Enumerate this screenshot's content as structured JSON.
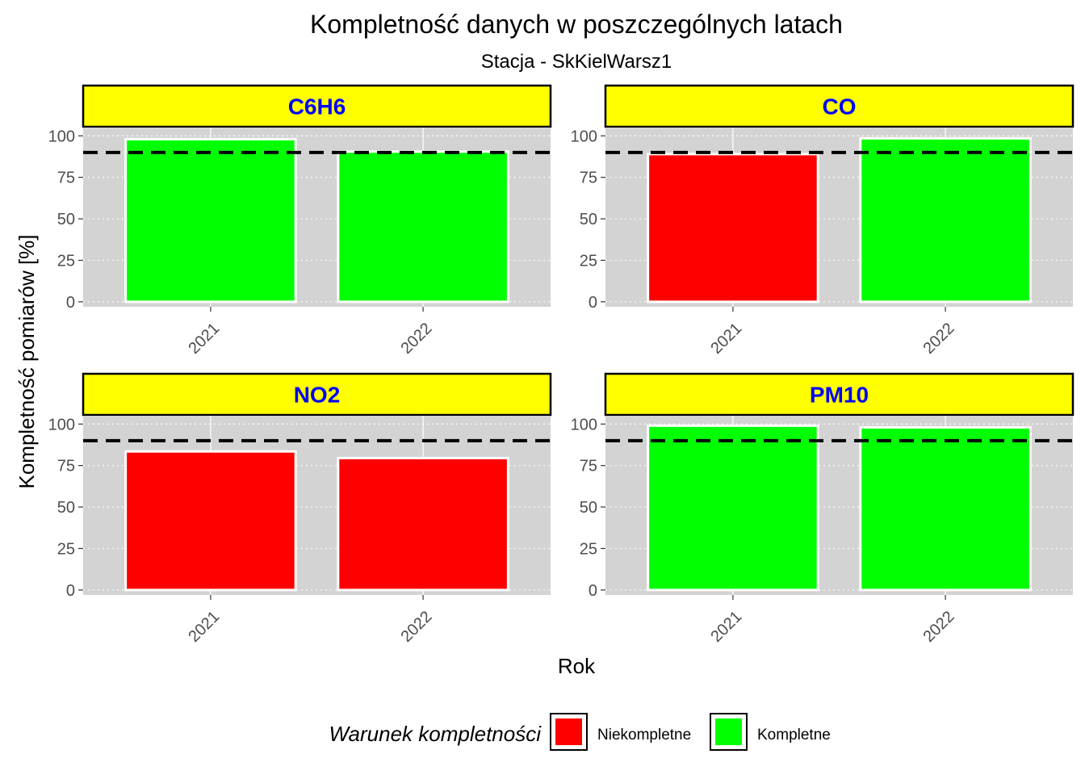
{
  "chart_data": {
    "type": "bar",
    "title": "Kompletność danych w poszczególnych latach",
    "subtitle": "Stacja - SkKielWarsz1",
    "xlabel": "Rok",
    "ylabel": "Kompletność pomiarów [%]",
    "ylim": [
      -3,
      105
    ],
    "yticks": [
      0,
      25,
      50,
      75,
      100
    ],
    "threshold": 90,
    "categories": [
      "2021",
      "2022"
    ],
    "grid": true,
    "legend_position": "bottom",
    "panels": [
      {
        "label": "C6H6",
        "values": [
          98,
          90.5
        ],
        "status": [
          "Kompletne",
          "Kompletne"
        ]
      },
      {
        "label": "CO",
        "values": [
          89,
          98.5
        ],
        "status": [
          "Niekompletne",
          "Kompletne"
        ]
      },
      {
        "label": "NO2",
        "values": [
          83.5,
          79.5
        ],
        "status": [
          "Niekompletne",
          "Niekompletne"
        ]
      },
      {
        "label": "PM10",
        "values": [
          99,
          98
        ],
        "status": [
          "Kompletne",
          "Kompletne"
        ]
      }
    ]
  },
  "legend": {
    "title": "Warunek kompletności",
    "items": [
      {
        "label": "Niekompletne",
        "color": "#ff0000"
      },
      {
        "label": "Kompletne",
        "color": "#00ff00"
      }
    ]
  },
  "colors": {
    "panel_bg": "#d3d3d3",
    "strip_bg": "#ffff00",
    "strip_text": "#0000ff",
    "threshold_line": "#000000"
  }
}
